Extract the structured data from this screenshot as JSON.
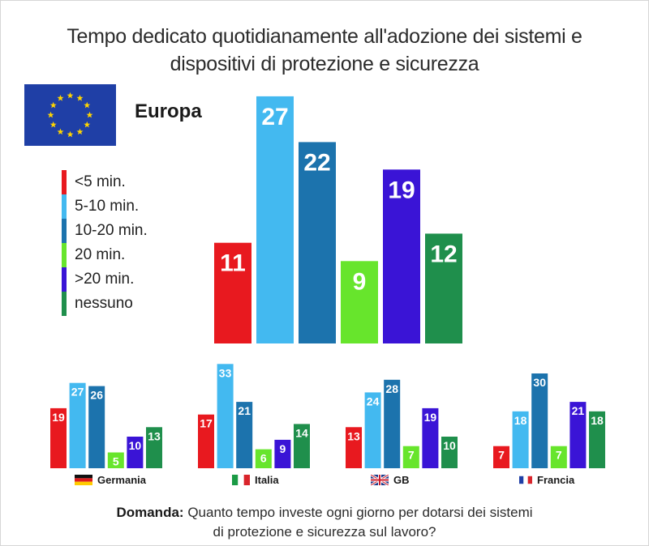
{
  "title": {
    "line1": "Tempo dedicato quotidianamente all'adozione dei sistemi e",
    "line2": "dispositivi di protezione e sicurezza"
  },
  "region_label": "Europa",
  "legend": [
    {
      "label": "<5 min.",
      "color": "#e8191f"
    },
    {
      "label": "5-10 min.",
      "color": "#43b9f0"
    },
    {
      "label": "10-20 min.",
      "color": "#1c73ad"
    },
    {
      "label": "20 min.",
      "color": "#67e52c"
    },
    {
      "label": ">20 min.",
      "color": "#3a14d6"
    },
    {
      "label": "nessuno",
      "color": "#1f8f4c"
    }
  ],
  "chart_data": [
    {
      "type": "bar",
      "name": "Europa",
      "categories": [
        "<5 min.",
        "5-10 min.",
        "10-20 min.",
        "20 min.",
        ">20 min.",
        "nessuno"
      ],
      "values": [
        11,
        27,
        22,
        9,
        19,
        12
      ],
      "colors": [
        "#e8191f",
        "#43b9f0",
        "#1c73ad",
        "#67e52c",
        "#3a14d6",
        "#1f8f4c"
      ],
      "data_labels": [
        "11",
        "27",
        "22",
        "9",
        "19",
        "12"
      ]
    },
    {
      "type": "bar",
      "name": "Germania",
      "categories": [
        "<5 min.",
        "5-10 min.",
        "10-20 min.",
        "20 min.",
        ">20 min.",
        "nessuno"
      ],
      "values": [
        19,
        27,
        26,
        5,
        10,
        13
      ],
      "data_labels": [
        "19",
        "27",
        "26",
        "5",
        "10",
        "13"
      ]
    },
    {
      "type": "bar",
      "name": "Italia",
      "categories": [
        "<5 min.",
        "5-10 min.",
        "10-20 min.",
        "20 min.",
        ">20 min.",
        "nessuno"
      ],
      "values": [
        17,
        33,
        21,
        6,
        9,
        14
      ],
      "data_labels": [
        "17",
        "33",
        "21",
        "6",
        "9",
        "14"
      ]
    },
    {
      "type": "bar",
      "name": "GB",
      "categories": [
        "<5 min.",
        "5-10 min.",
        "10-20 min.",
        "20 min.",
        ">20 min.",
        "nessuno"
      ],
      "values": [
        13,
        24,
        28,
        7,
        19,
        10
      ],
      "data_labels": [
        "13",
        "24",
        "28",
        "7",
        "19",
        "10"
      ]
    },
    {
      "type": "bar",
      "name": "Francia",
      "categories": [
        "<5 min.",
        "5-10 min.",
        "10-20 min.",
        "20 min.",
        ">20 min.",
        "nessuno"
      ],
      "values": [
        7,
        18,
        30,
        7,
        21,
        18
      ],
      "data_labels": [
        "7",
        "18",
        "30",
        "7",
        "21",
        "18"
      ]
    }
  ],
  "countries": [
    {
      "label": "Germania",
      "flag_icon": "germany-flag-icon"
    },
    {
      "label": "Italia",
      "flag_icon": "italy-flag-icon"
    },
    {
      "label": "GB",
      "flag_icon": "uk-flag-icon"
    },
    {
      "label": "Francia",
      "flag_icon": "france-flag-icon"
    }
  ],
  "question": {
    "label": "Domanda:",
    "line1": "Quanto tempo investe ogni giorno per dotarsi dei sistemi",
    "line2": "di protezione e sicurezza sul lavoro?"
  }
}
